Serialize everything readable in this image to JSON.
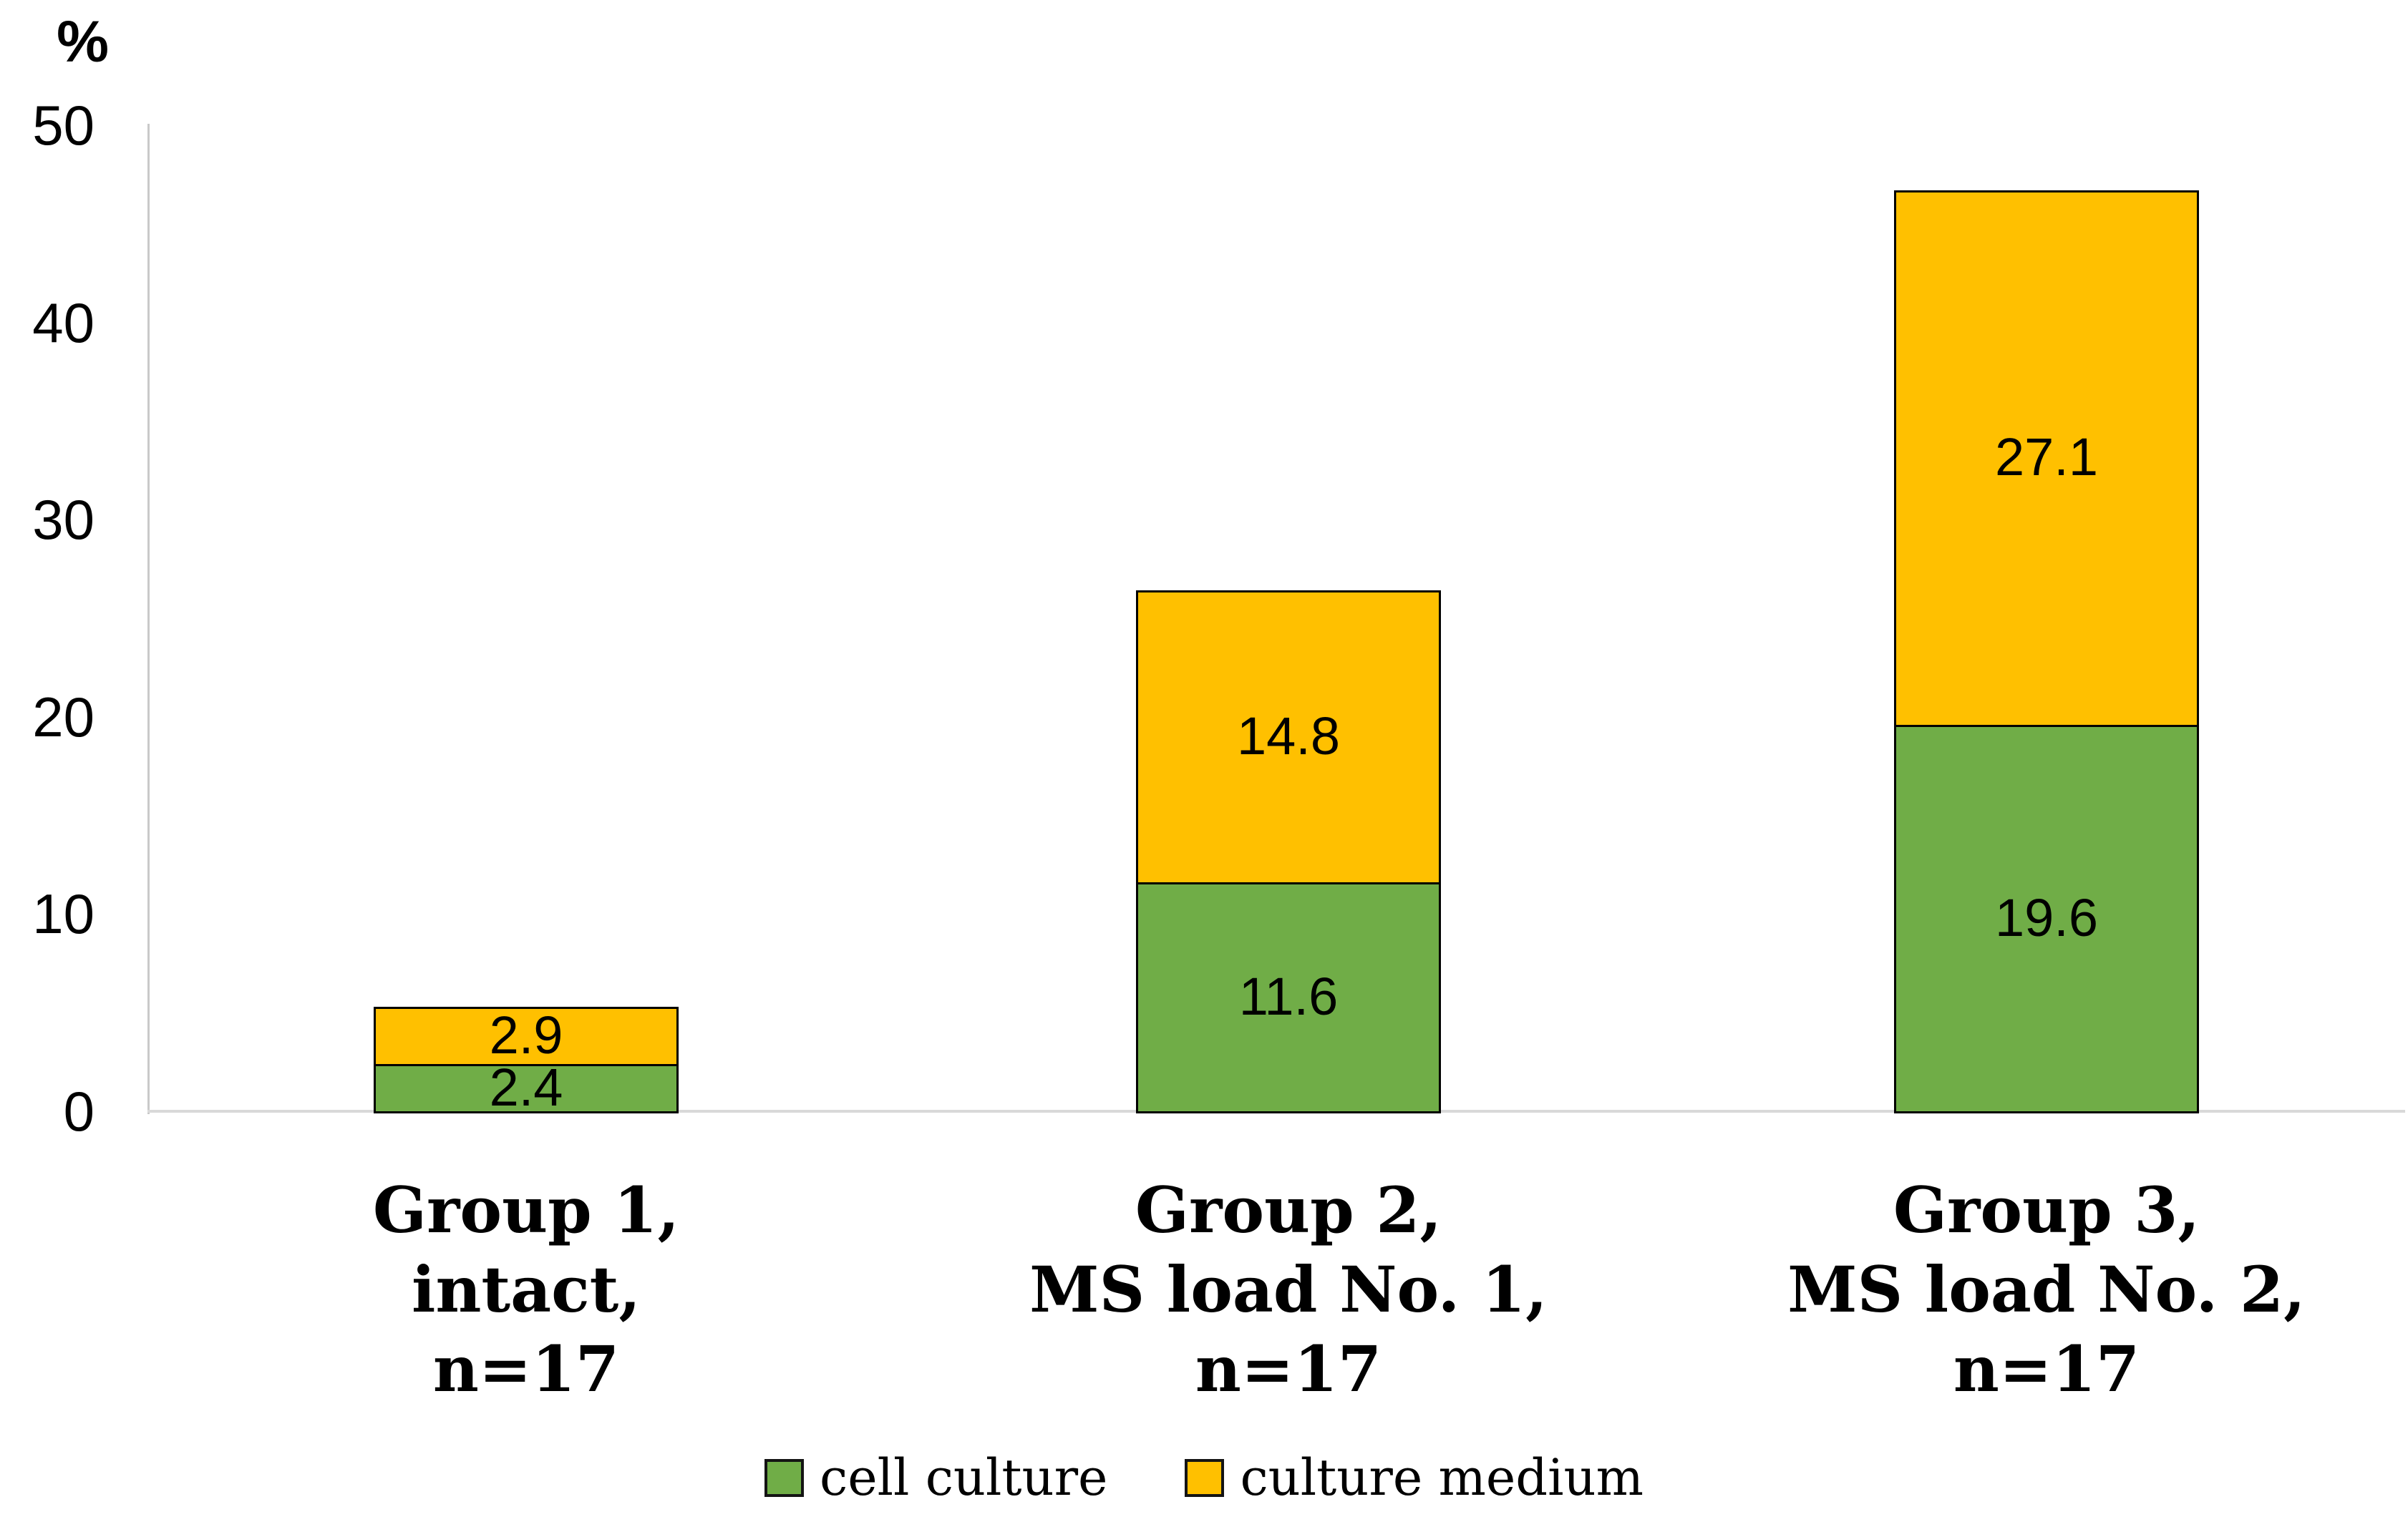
{
  "chart_data": {
    "type": "bar",
    "stacked": true,
    "title": "",
    "ylabel": "%",
    "xlabel": "",
    "ylim": [
      0,
      50
    ],
    "yticks": [
      0,
      10,
      20,
      30,
      40,
      50
    ],
    "grid": false,
    "legend_position": "bottom",
    "categories": [
      {
        "lines": [
          "Group 1,",
          "intact,",
          "n=17"
        ]
      },
      {
        "lines": [
          "Group 2,",
          "MS load No. 1,",
          "n=17"
        ]
      },
      {
        "lines": [
          "Group 3,",
          "MS load No. 2,",
          "n=17"
        ]
      }
    ],
    "series": [
      {
        "name": "cell culture",
        "color": "#70AD47",
        "border_color": "#000000",
        "values": [
          2.4,
          11.6,
          19.6
        ]
      },
      {
        "name": "culture medium",
        "color": "#FFC000",
        "border_color": "#000000",
        "values": [
          2.9,
          14.8,
          27.1
        ]
      }
    ],
    "totals": [
      5.3,
      26.4,
      46.7
    ],
    "value_label_decimals": 1,
    "colors": {
      "y_axis_line": "#C9C9C9",
      "x_axis_line": "#D9D9D9",
      "text": "#000000"
    }
  }
}
